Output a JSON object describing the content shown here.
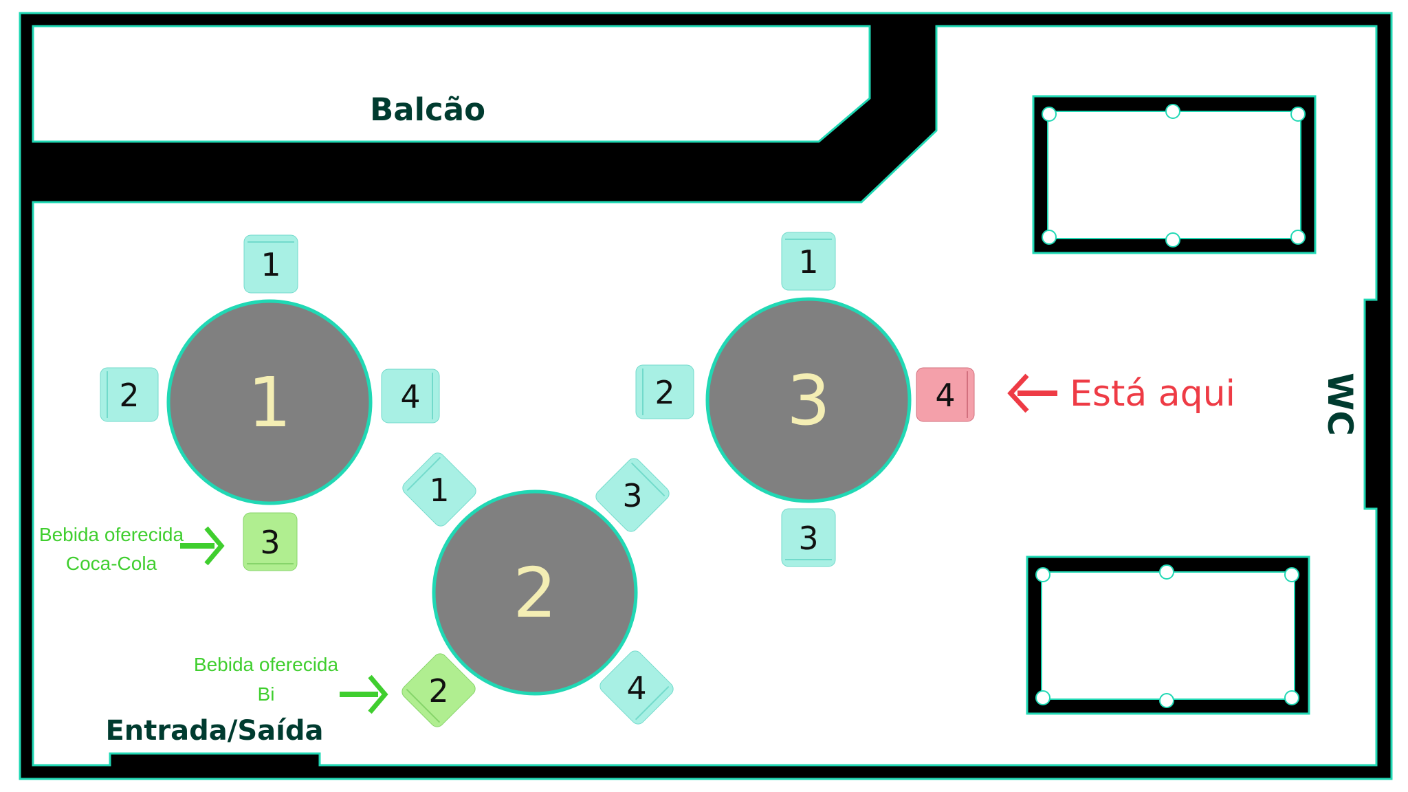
{
  "labels": {
    "counter": "Balcão",
    "entrance": "Entrada/Saída",
    "wc": "WC",
    "you_are_here": "Está aqui"
  },
  "tables": [
    {
      "number": "1",
      "seats": [
        "1",
        "2",
        "3",
        "4"
      ]
    },
    {
      "number": "2",
      "seats": [
        "1",
        "2",
        "3",
        "4"
      ]
    },
    {
      "number": "3",
      "seats": [
        "1",
        "2",
        "3",
        "4"
      ]
    }
  ],
  "notes": [
    {
      "line1": "Bebida oferecida",
      "line2": "Coca-Cola"
    },
    {
      "line1": "Bebida oferecida",
      "line2": "Bi"
    }
  ],
  "colors": {
    "outline": "#20d8b4",
    "wall": "#000000",
    "table_fill": "#808080",
    "seat": "#a8f0e4",
    "seat_served": "#b0ee90",
    "seat_current": "#f4a0aa",
    "arrow_green": "#3fce2e",
    "arrow_red": "#ee3b45"
  }
}
